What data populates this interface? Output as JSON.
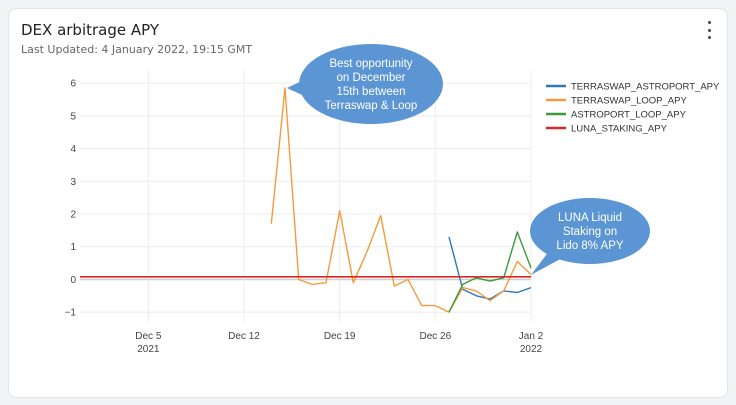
{
  "card": {
    "title": "DEX arbitrage APY",
    "subtitle": "Last Updated: 4 January 2022, 19:15 GMT",
    "menu_icon": "vertical-ellipsis-icon"
  },
  "chart_data": {
    "type": "line",
    "x_ticks": [
      {
        "date": "2021-12-05",
        "label": "Dec 5",
        "sublabel": "2021"
      },
      {
        "date": "2021-12-12",
        "label": "Dec 12",
        "sublabel": ""
      },
      {
        "date": "2021-12-19",
        "label": "Dec 19",
        "sublabel": ""
      },
      {
        "date": "2021-12-26",
        "label": "Dec 26",
        "sublabel": ""
      },
      {
        "date": "2022-01-02",
        "label": "Jan 2",
        "sublabel": "2022"
      }
    ],
    "y_ticks": [
      6,
      5,
      4,
      3,
      2,
      1,
      0,
      -1
    ],
    "ylim": [
      -1.3,
      6.4
    ],
    "xlim": [
      "2021-11-30",
      "2022-01-02"
    ],
    "grid": true,
    "legend_position": "top-right",
    "series": [
      {
        "name": "TERRASWAP_ASTROPORT_APY",
        "color": "#2f78b7",
        "points": [
          [
            "2021-12-27",
            1.3
          ],
          [
            "2021-12-28",
            -0.3
          ],
          [
            "2021-12-29",
            -0.5
          ],
          [
            "2021-12-30",
            -0.6
          ],
          [
            "2021-12-31",
            -0.35
          ],
          [
            "2022-01-01",
            -0.4
          ],
          [
            "2022-01-02",
            -0.25
          ]
        ]
      },
      {
        "name": "TERRASWAP_LOOP_APY",
        "color": "#f59a3c",
        "points": [
          [
            "2021-12-14",
            1.7
          ],
          [
            "2021-12-15",
            5.85
          ],
          [
            "2021-12-16",
            0.0
          ],
          [
            "2021-12-17",
            -0.15
          ],
          [
            "2021-12-18",
            -0.1
          ],
          [
            "2021-12-19",
            2.1
          ],
          [
            "2021-12-20",
            -0.1
          ],
          [
            "2021-12-21",
            0.85
          ],
          [
            "2021-12-22",
            1.95
          ],
          [
            "2021-12-23",
            -0.2
          ],
          [
            "2021-12-24",
            0.0
          ],
          [
            "2021-12-25",
            -0.8
          ],
          [
            "2021-12-26",
            -0.8
          ],
          [
            "2021-12-27",
            -1.0
          ],
          [
            "2021-12-28",
            -0.25
          ],
          [
            "2021-12-29",
            -0.35
          ],
          [
            "2021-12-30",
            -0.65
          ],
          [
            "2021-12-31",
            -0.35
          ],
          [
            "2022-01-01",
            0.55
          ],
          [
            "2022-01-02",
            0.15
          ]
        ]
      },
      {
        "name": "ASTROPORT_LOOP_APY",
        "color": "#3b9a3b",
        "points": [
          [
            "2021-12-27",
            -1.0
          ],
          [
            "2021-12-28",
            -0.15
          ],
          [
            "2021-12-29",
            0.05
          ],
          [
            "2021-12-30",
            -0.05
          ],
          [
            "2021-12-31",
            0.05
          ],
          [
            "2022-01-01",
            1.45
          ],
          [
            "2022-01-02",
            0.35
          ]
        ]
      },
      {
        "name": "LUNA_STAKING_APY",
        "color": "#d62728",
        "points": [
          [
            "2021-11-30",
            0.08
          ],
          [
            "2022-01-02",
            0.08
          ]
        ]
      }
    ],
    "annotations": [
      {
        "text_lines": [
          "Best opportunity",
          "on December",
          "15th between",
          "Terraswap & Loop"
        ],
        "pointer_date": "2021-12-15",
        "pointer_value": 5.85
      },
      {
        "text_lines": [
          "LUNA Liquid",
          "Staking on",
          "Lido 8% APY"
        ],
        "pointer_date": "2022-01-02",
        "pointer_value": 0.08
      }
    ]
  }
}
